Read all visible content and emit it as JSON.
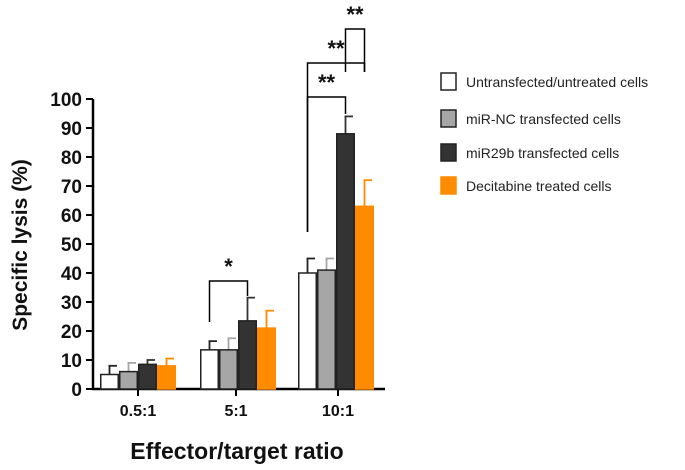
{
  "chart_data": {
    "type": "bar",
    "title": "",
    "xlabel": "Effector/target ratio",
    "ylabel": "Specific lysis (%)",
    "ylim": [
      0,
      100
    ],
    "yticks": [
      "0",
      "10",
      "20",
      "30",
      "40",
      "50",
      "60",
      "70",
      "80",
      "90",
      "100"
    ],
    "categories": [
      "0.5:1",
      "5:1",
      "10:1"
    ],
    "legend_position": "right",
    "series": [
      {
        "name": "Untransfected/untreated cells",
        "color": "#ffffff",
        "values": [
          5,
          13.5,
          40
        ],
        "errors": [
          3,
          3,
          5
        ]
      },
      {
        "name": "miR-NC transfected cells",
        "color": "#a6a6a6",
        "values": [
          6,
          13.5,
          41
        ],
        "errors": [
          3,
          4,
          4
        ]
      },
      {
        "name": "miR29b transfected cells",
        "color": "#333333",
        "values": [
          8.5,
          23.5,
          88
        ],
        "errors": [
          1.5,
          8,
          6
        ]
      },
      {
        "name": "Decitabine treated cells",
        "color": "#ff8c00",
        "values": [
          8,
          21,
          63
        ],
        "errors": [
          2.5,
          6,
          9
        ]
      }
    ],
    "significance": [
      {
        "category": "5:1",
        "from_series": 0,
        "to_series": 2,
        "label": "*"
      },
      {
        "category": "10:1",
        "from_series": 0,
        "to_series": 2,
        "label": "**"
      },
      {
        "category": "10:1",
        "from_series": 0,
        "to_series": 3,
        "label": "**"
      },
      {
        "category": "10:1",
        "from_series": 2,
        "to_series": 3,
        "label": "**"
      }
    ]
  }
}
